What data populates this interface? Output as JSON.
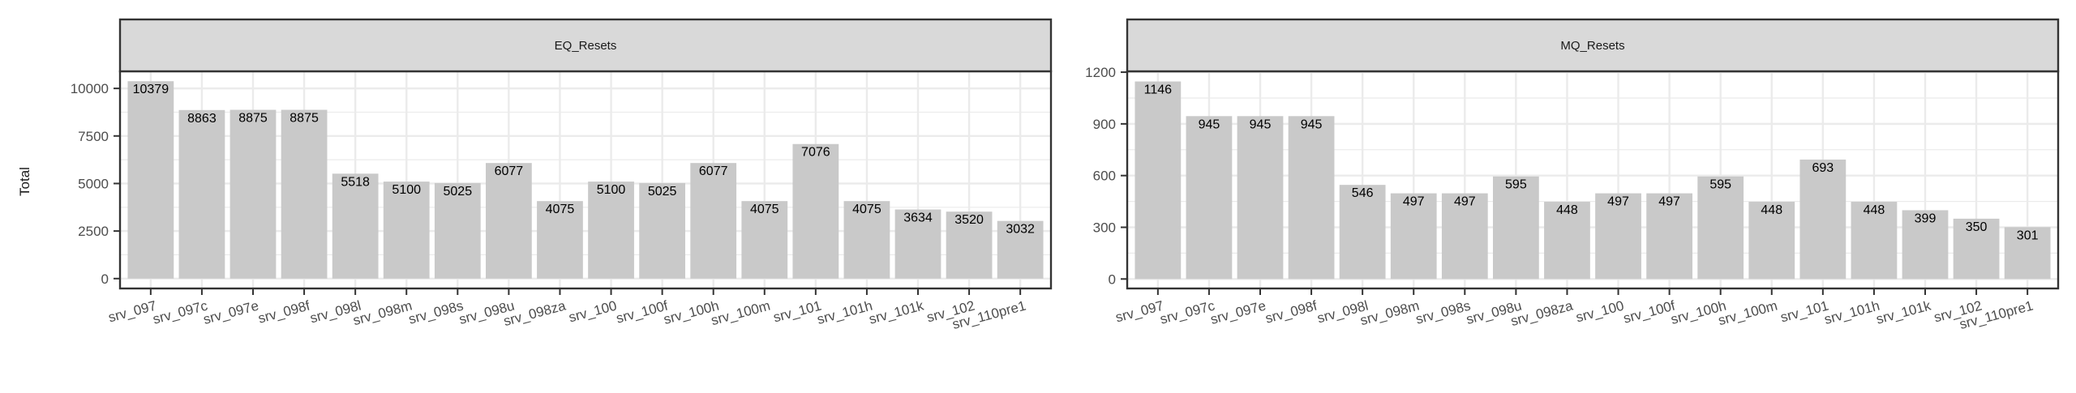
{
  "y_axis_title": "Total",
  "chart_data": [
    {
      "type": "bar",
      "facet_title": "EQ_Resets",
      "categories": [
        "srv_097",
        "srv_097c",
        "srv_097e",
        "srv_098f",
        "srv_098l",
        "srv_098m",
        "srv_098s",
        "srv_098u",
        "srv_098za",
        "srv_100",
        "srv_100f",
        "srv_100h",
        "srv_100m",
        "srv_101",
        "srv_101h",
        "srv_101k",
        "srv_102",
        "srv_110pre1"
      ],
      "values": [
        10379,
        8863,
        8875,
        8875,
        5518,
        5100,
        5025,
        6077,
        4075,
        5100,
        5025,
        6077,
        4075,
        7076,
        4075,
        3634,
        3520,
        3032
      ],
      "data_labels": [
        "10379",
        "8863",
        "8875",
        "8875",
        "5518",
        "5100",
        "5025",
        "6077",
        "4075",
        "5100",
        "5025",
        "6077",
        "4075",
        "7076",
        "4075",
        "3634",
        "3520",
        "3032"
      ],
      "yticks": [
        0,
        2500,
        5000,
        7500,
        10000
      ],
      "ytick_labels": [
        "0",
        "2500",
        "5000",
        "7500",
        "10000"
      ],
      "ylim": [
        -520,
        10900
      ],
      "ylabel": "Total",
      "grid": true,
      "colors": {
        "bar": "#c9c9c9",
        "strip": "#d9d9d9",
        "grid": "#ebebeb"
      }
    },
    {
      "type": "bar",
      "facet_title": "MQ_Resets",
      "categories": [
        "srv_097",
        "srv_097c",
        "srv_097e",
        "srv_098f",
        "srv_098l",
        "srv_098m",
        "srv_098s",
        "srv_098u",
        "srv_098za",
        "srv_100",
        "srv_100f",
        "srv_100h",
        "srv_100m",
        "srv_101",
        "srv_101h",
        "srv_101k",
        "srv_102",
        "srv_110pre1"
      ],
      "values": [
        1146,
        945,
        945,
        945,
        546,
        497,
        497,
        595,
        448,
        497,
        497,
        595,
        448,
        693,
        448,
        399,
        350,
        301
      ],
      "data_labels": [
        "1146",
        "945",
        "945",
        "945",
        "546",
        "497",
        "497",
        "595",
        "448",
        "497",
        "497",
        "595",
        "448",
        "693",
        "448",
        "399",
        "350",
        "301"
      ],
      "yticks": [
        0,
        300,
        600,
        900,
        1200
      ],
      "ytick_labels": [
        "0",
        "300",
        "600",
        "900",
        "1200"
      ],
      "ylim": [
        -55,
        1205
      ],
      "ylabel": "",
      "grid": true,
      "colors": {
        "bar": "#c9c9c9",
        "strip": "#d9d9d9",
        "grid": "#ebebeb"
      }
    }
  ]
}
